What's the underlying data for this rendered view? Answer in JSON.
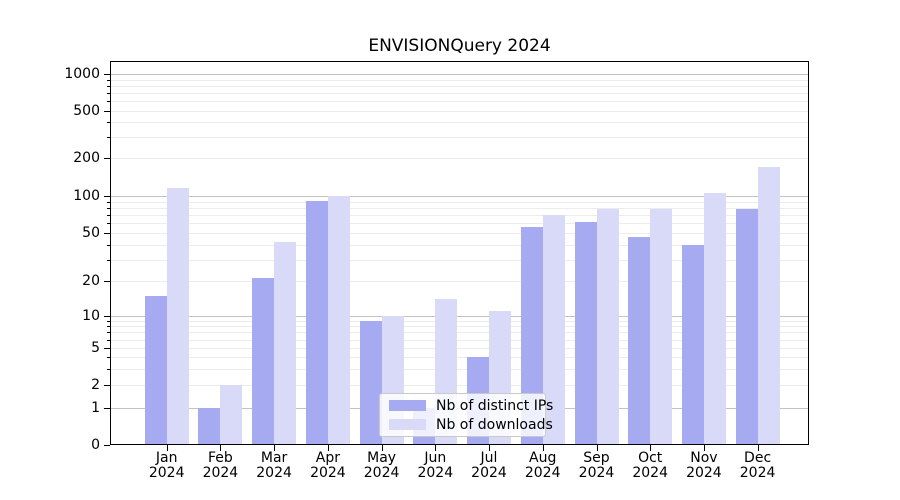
{
  "chart_data": {
    "type": "bar",
    "title": "ENVISIONQuery 2024",
    "categories": [
      "Jan",
      "Feb",
      "Mar",
      "Apr",
      "May",
      "Jun",
      "Jul",
      "Aug",
      "Sep",
      "Oct",
      "Nov",
      "Dec"
    ],
    "x_sublabel": "2024",
    "series": [
      {
        "name": "Nb of distinct IPs",
        "color": "#a6aaf0",
        "values": [
          15,
          1,
          21,
          92,
          9,
          1,
          4,
          56,
          62,
          46,
          40,
          78
        ]
      },
      {
        "name": "Nb of downloads",
        "color": "#d8daf8",
        "values": [
          115,
          2,
          42,
          100,
          10,
          14,
          11,
          70,
          78,
          78,
          105,
          170
        ]
      }
    ],
    "y_scale": "symlog",
    "y_tick_labels": [
      "0",
      "1",
      "2",
      "5",
      "10",
      "20",
      "50",
      "100",
      "200",
      "500",
      "1000"
    ],
    "y_tick_values": [
      0,
      1,
      2,
      5,
      10,
      20,
      50,
      100,
      200,
      500,
      1000
    ],
    "ylim": [
      0,
      1000
    ],
    "grid": "horizontal major at 1/10/100/1000, faint minors between",
    "legend_position": "lower center"
  }
}
